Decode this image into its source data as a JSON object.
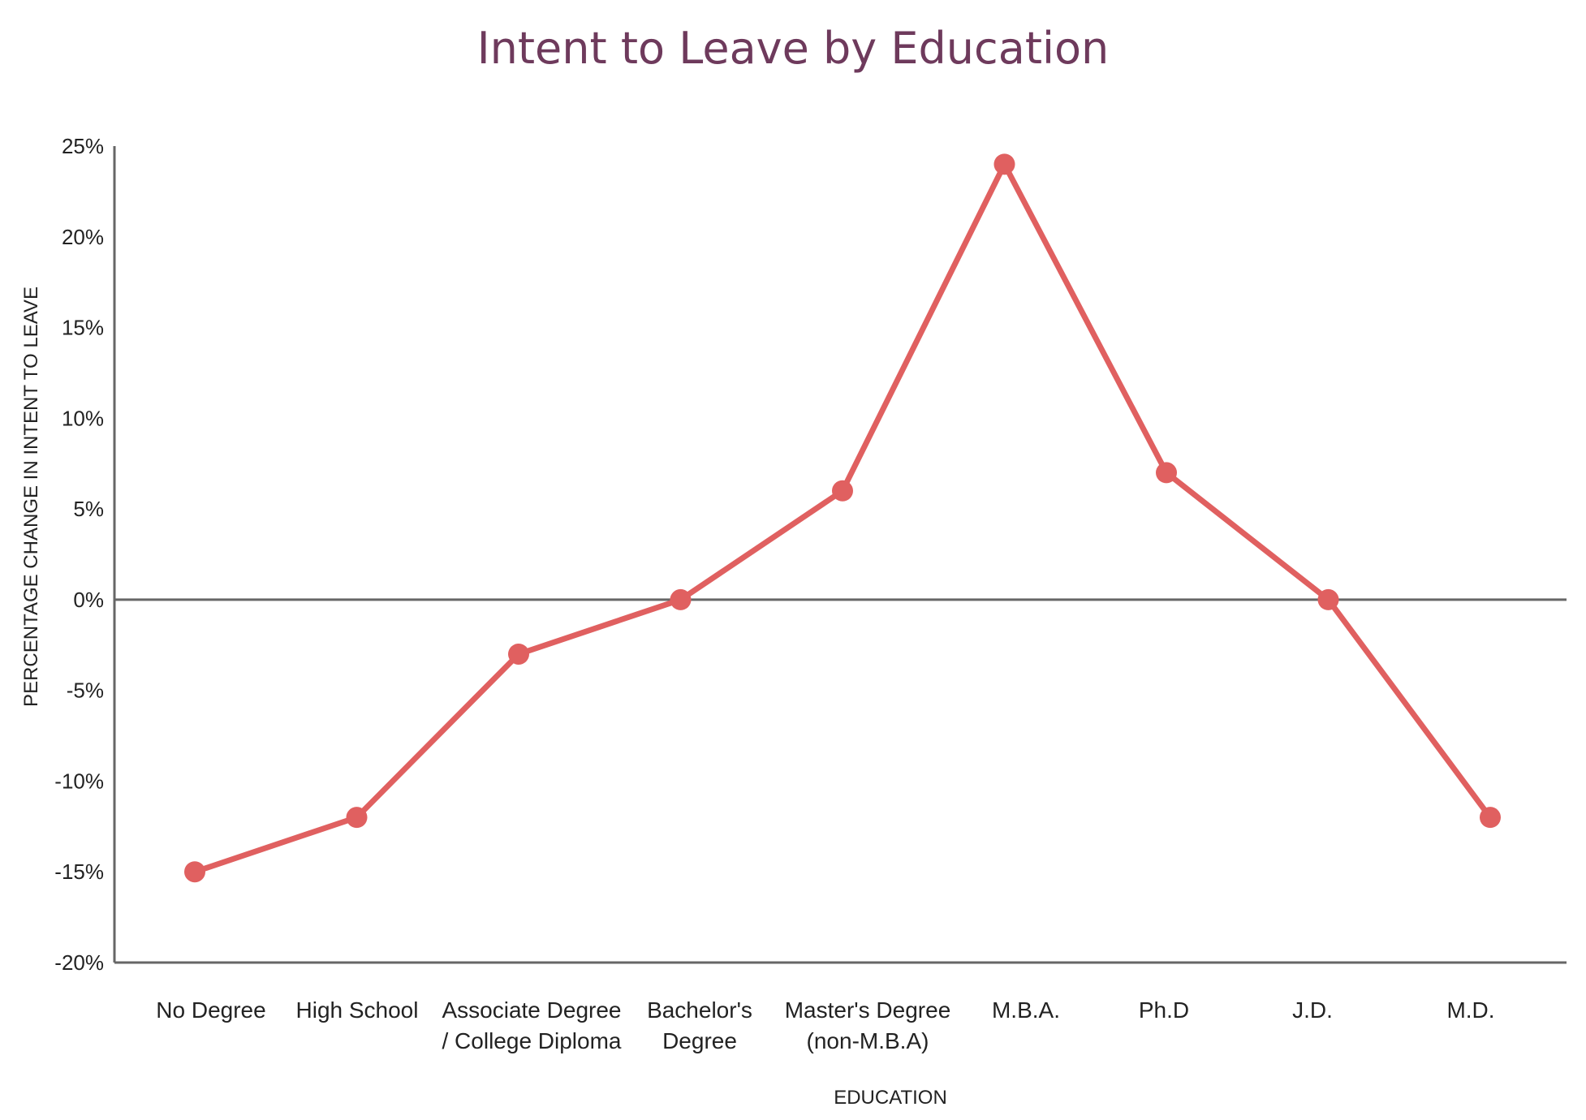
{
  "chart_data": {
    "type": "line",
    "title": "Intent to Leave by Education",
    "xlabel": "EDUCATION",
    "ylabel": "PERCENTAGE CHANGE IN INTENT TO LEAVE",
    "ylim": [
      -20,
      25
    ],
    "yticks": [
      25,
      20,
      15,
      10,
      5,
      0,
      -5,
      -10,
      -15,
      -20
    ],
    "ytick_labels": [
      "25%",
      "20%",
      "15%",
      "10%",
      "5%",
      "0%",
      "-5%",
      "-10%",
      "-15%",
      "-20%"
    ],
    "categories": [
      [
        "No Degree"
      ],
      [
        "High School"
      ],
      [
        "Associate Degree",
        "/ College Diploma"
      ],
      [
        "Bachelor's",
        "Degree"
      ],
      [
        "Master's Degree",
        "(non-M.B.A)"
      ],
      [
        "M.B.A."
      ],
      [
        "Ph.D"
      ],
      [
        "J.D."
      ],
      [
        "M.D."
      ]
    ],
    "series": [
      {
        "values": [
          -15,
          -12,
          -3,
          0,
          6,
          24,
          7,
          0,
          -12
        ]
      }
    ],
    "grid": false,
    "zero_line": true
  },
  "colors": {
    "title": "#6e3a5c",
    "line": "#e06060",
    "axis": "#666666"
  }
}
